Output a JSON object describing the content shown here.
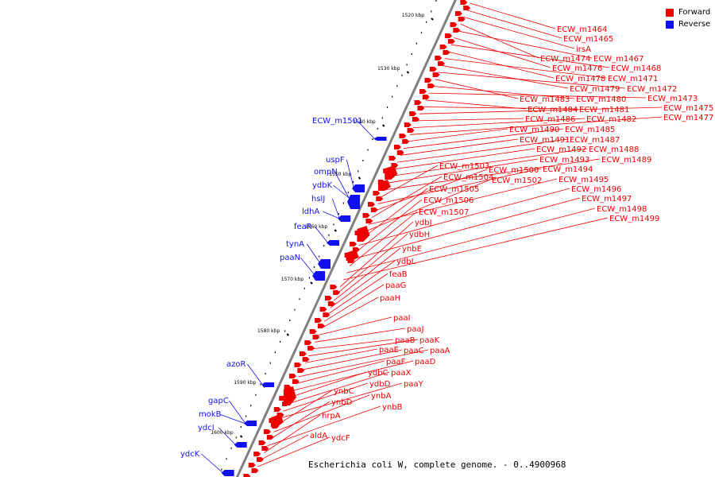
{
  "colors": {
    "forward": "#ee0000",
    "reverse": "#1010ee",
    "backbone": "#808080",
    "text": "#000000"
  },
  "legend": [
    {
      "label": "Forward",
      "color": "#ee0000"
    },
    {
      "label": "Reverse",
      "color": "#1010ee"
    }
  ],
  "caption": "Escherichia coli W, complete genome. - 0..4900968",
  "ticks": [
    "1520 kbp",
    "1530 kbp",
    "1540 kbp",
    "1550 kbp",
    "1560 kbp",
    "1570 kbp",
    "1580 kbp",
    "1590 kbp",
    "1600 kbp"
  ],
  "forward_labels": [
    "ECW_m1464",
    "ECW_m1465",
    "irsA",
    "ECW_m1474",
    "ECW_m1467",
    "ECW_m1476",
    "ECW_m1468",
    "ECW_m1478",
    "ECW_m1471",
    "ECW_m1479",
    "ECW_m1472",
    "ECW_m1483",
    "ECW_m1480",
    "ECW_m1473",
    "ECW_m1484",
    "ECW_m1481",
    "ECW_m1475",
    "ECW_m1486",
    "ECW_m1482",
    "ECW_m1477",
    "ECW_m1490",
    "ECW_m1485",
    "ECW_m1491",
    "ECW_m1487",
    "ECW_m1492",
    "ECW_m1488",
    "ECW_m1493",
    "ECW_m1489",
    "ECW_m1503",
    "ECW_m1494",
    "ECW_m1500",
    "ECW_m1504",
    "ECW_m1495",
    "ECW_m1502",
    "ECW_m1505",
    "ECW_m1496",
    "ECW_m1506",
    "ECW_m1497",
    "ECW_m1507",
    "ECW_m1498",
    "ECW_m1499",
    "ydbJ",
    "ydbH",
    "ynbE",
    "ydbL",
    "feaB",
    "paaG",
    "paaH",
    "paaI",
    "paaJ",
    "paaB",
    "paaK",
    "paaE",
    "paaC",
    "paaA",
    "paaF",
    "paaD",
    "ydbC",
    "paaX",
    "ydbD",
    "paaY",
    "ynbC",
    "ynbA",
    "ynbD",
    "ynbB",
    "hrpA",
    "aldA",
    "ydcF"
  ],
  "reverse_labels": [
    "ECW_m1501",
    "uspF",
    "ompN",
    "ydbK",
    "hslJ",
    "ldhA",
    "feaR",
    "tynA",
    "paaN",
    "azoR",
    "gapC",
    "mokB",
    "ydcI",
    "ydcK"
  ]
}
